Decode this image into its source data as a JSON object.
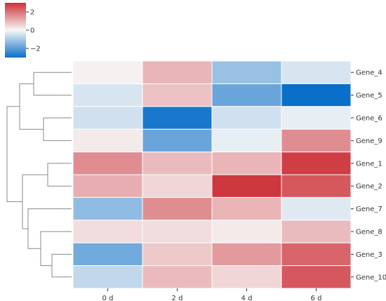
{
  "chart_data": {
    "type": "heatmap",
    "title": "",
    "xlabel": "",
    "ylabel": "",
    "columns": [
      "0 d",
      "2 d",
      "4 d",
      "6 d"
    ],
    "rows": [
      "Gene_4",
      "Gene_5",
      "Gene_6",
      "Gene_9",
      "Gene_1",
      "Gene_2",
      "Gene_7",
      "Gene_8",
      "Gene_3",
      "Gene_10"
    ],
    "values": [
      [
        0.1,
        1.0,
        -1.2,
        -0.4
      ],
      [
        -0.4,
        0.8,
        -1.8,
        -3.0
      ],
      [
        -0.5,
        -2.8,
        -0.5,
        -0.2
      ],
      [
        0.2,
        -1.8,
        -0.2,
        1.6
      ],
      [
        1.6,
        0.9,
        1.0,
        2.8
      ],
      [
        1.1,
        0.5,
        2.9,
        2.4
      ],
      [
        -1.3,
        1.6,
        1.0,
        -0.3
      ],
      [
        0.4,
        0.4,
        0.2,
        0.9
      ],
      [
        -1.7,
        0.7,
        1.4,
        2.2
      ],
      [
        -0.7,
        0.9,
        0.5,
        2.4
      ]
    ],
    "colorbar": {
      "ticks": [
        2,
        0,
        -2
      ],
      "tick_labels": [
        "2",
        "0",
        "−2"
      ],
      "range": [
        -3,
        3
      ],
      "colors": {
        "low": "#0a6fc8",
        "mid": "#f7f7f7",
        "high": "#cc3038"
      }
    },
    "dendrogram": {
      "leaf_order": [
        "Gene_4",
        "Gene_5",
        "Gene_6",
        "Gene_9",
        "Gene_1",
        "Gene_2",
        "Gene_7",
        "Gene_8",
        "Gene_3",
        "Gene_10"
      ],
      "line_color": "#888888"
    },
    "cell_border_color": "#ffffff",
    "grid": false,
    "legend": "top-left"
  }
}
